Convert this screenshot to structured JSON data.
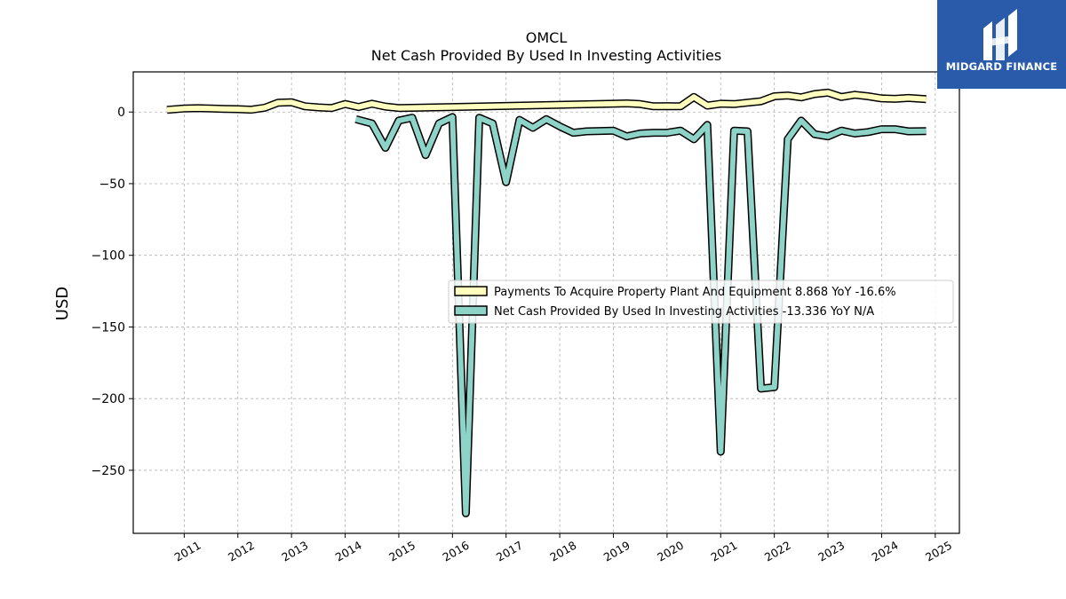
{
  "brand": {
    "name": "MIDGARD FINANCE",
    "color": "#2a5bab"
  },
  "chart_data": {
    "type": "line",
    "title": "OMCL",
    "subtitle": "Net Cash Provided By Used In Investing Activities",
    "ylabel": "USD",
    "xlabel": "",
    "xlim": [
      2010.05,
      2025.45
    ],
    "ylim": [
      -294,
      28
    ],
    "x_ticks": [
      "2011",
      "2012",
      "2013",
      "2014",
      "2015",
      "2016",
      "2017",
      "2018",
      "2019",
      "2020",
      "2021",
      "2022",
      "2023",
      "2024",
      "2025"
    ],
    "y_ticks": [
      0,
      -50,
      -100,
      -150,
      -200,
      -250
    ],
    "y_tick_labels": [
      "0",
      "−50",
      "−100",
      "−150",
      "−200",
      "−250"
    ],
    "grid": true,
    "legend_position": "center-right",
    "series": [
      {
        "name": "Payments To Acquire Property Plant And Equipment",
        "legend_label": "Payments To Acquire Property Plant And Equipment  8.868 YoY -16.6%",
        "color": "#ffffbf",
        "points": [
          [
            2010.68,
            1.5
          ],
          [
            2011.0,
            2.5
          ],
          [
            2011.25,
            2.7
          ],
          [
            2011.5,
            2.5
          ],
          [
            2011.75,
            2.2
          ],
          [
            2012.0,
            2.0
          ],
          [
            2012.25,
            1.6
          ],
          [
            2012.5,
            3.0
          ],
          [
            2012.75,
            6.5
          ],
          [
            2013.0,
            6.8
          ],
          [
            2013.25,
            4.0
          ],
          [
            2013.5,
            3.2
          ],
          [
            2013.75,
            2.8
          ],
          [
            2014.0,
            5.6
          ],
          [
            2014.25,
            3.5
          ],
          [
            2014.5,
            5.8
          ],
          [
            2014.75,
            3.8
          ],
          [
            2015.0,
            2.8
          ],
          [
            2016.0,
            3.5
          ],
          [
            2017.0,
            4.2
          ],
          [
            2018.0,
            5.0
          ],
          [
            2019.0,
            5.8
          ],
          [
            2019.25,
            6.0
          ],
          [
            2019.5,
            5.5
          ],
          [
            2019.75,
            4.0
          ],
          [
            2020.0,
            4.1
          ],
          [
            2020.25,
            4.0
          ],
          [
            2020.5,
            10.5
          ],
          [
            2020.75,
            4.5
          ],
          [
            2021.0,
            5.8
          ],
          [
            2021.25,
            5.5
          ],
          [
            2021.5,
            6.5
          ],
          [
            2021.75,
            7.5
          ],
          [
            2022.0,
            11.0
          ],
          [
            2022.25,
            11.5
          ],
          [
            2022.5,
            10.2
          ],
          [
            2022.75,
            12.5
          ],
          [
            2023.0,
            13.5
          ],
          [
            2023.25,
            10.5
          ],
          [
            2023.5,
            12.0
          ],
          [
            2023.75,
            11.0
          ],
          [
            2024.0,
            9.5
          ],
          [
            2024.25,
            9.2
          ],
          [
            2024.5,
            9.8
          ],
          [
            2024.83,
            8.9
          ]
        ]
      },
      {
        "name": "Net Cash Provided By Used In Investing Activities",
        "legend_label": "Net Cash Provided By Used In Investing Activities  -13.336 YoY N/A",
        "color": "#8dd3c7",
        "points": [
          [
            2014.2,
            -5.0
          ],
          [
            2014.5,
            -8.0
          ],
          [
            2014.75,
            -25.0
          ],
          [
            2015.0,
            -6.0
          ],
          [
            2015.25,
            -4.0
          ],
          [
            2015.5,
            -30.0
          ],
          [
            2015.75,
            -8.0
          ],
          [
            2016.0,
            -3.5
          ],
          [
            2016.25,
            -280.0
          ],
          [
            2016.5,
            -4.0
          ],
          [
            2016.75,
            -8.0
          ],
          [
            2017.0,
            -49.0
          ],
          [
            2017.25,
            -5.5
          ],
          [
            2017.5,
            -11.0
          ],
          [
            2017.75,
            -5.0
          ],
          [
            2018.0,
            -10.0
          ],
          [
            2018.25,
            -14.5
          ],
          [
            2018.5,
            -13.5
          ],
          [
            2019.0,
            -13.0
          ],
          [
            2019.25,
            -17.0
          ],
          [
            2019.5,
            -15.0
          ],
          [
            2019.75,
            -14.5
          ],
          [
            2020.0,
            -14.5
          ],
          [
            2020.25,
            -13.0
          ],
          [
            2020.5,
            -19.0
          ],
          [
            2020.75,
            -9.0
          ],
          [
            2021.0,
            -237.0
          ],
          [
            2021.25,
            -13.0
          ],
          [
            2021.5,
            -13.5
          ],
          [
            2021.75,
            -193.0
          ],
          [
            2022.0,
            -192.0
          ],
          [
            2022.25,
            -19.0
          ],
          [
            2022.5,
            -6.0
          ],
          [
            2022.75,
            -15.5
          ],
          [
            2023.0,
            -17.0
          ],
          [
            2023.25,
            -13.0
          ],
          [
            2023.5,
            -15.0
          ],
          [
            2023.75,
            -14.0
          ],
          [
            2024.0,
            -12.0
          ],
          [
            2024.25,
            -12.0
          ],
          [
            2024.5,
            -13.5
          ],
          [
            2024.83,
            -13.3
          ]
        ]
      }
    ]
  }
}
